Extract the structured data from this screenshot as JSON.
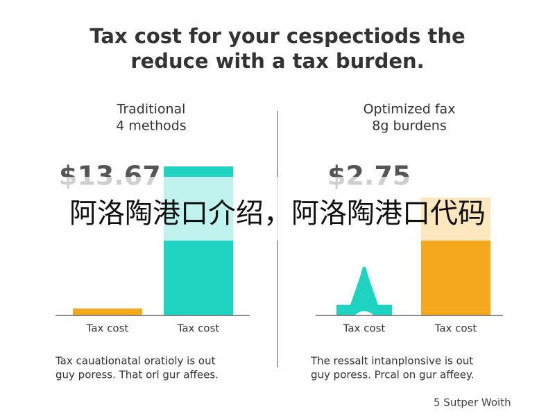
{
  "title": [
    "Tax cost for your cespectiods the",
    "reduce with a tax burden."
  ],
  "overlay_text": "阿洛陶港口介绍，阿洛陶港口代码",
  "footer": "5 Sutper Woith",
  "chart_data": [
    {
      "type": "bar",
      "subtitle": [
        "Traditional",
        "4 methods"
      ],
      "big_label": "$13.67",
      "categories": [
        "Tax cost",
        "Tax cost"
      ],
      "values": [
        2,
        43
      ],
      "colors": [
        "#f5a81c",
        "#1fd3c1"
      ],
      "shapes": [
        "bar",
        "bar"
      ],
      "footnote": [
        "Tax cauationatal oratioly is out",
        "guy poress. That orl gur affees."
      ]
    },
    {
      "type": "bar",
      "subtitle": [
        "Optimized fax",
        "8g burdens"
      ],
      "big_label": "$2.75",
      "categories": [
        "Tax cost",
        "Tax cost"
      ],
      "values": [
        14,
        34
      ],
      "colors": [
        "#1fd3c1",
        "#f5a81c"
      ],
      "shapes": [
        "tower",
        "bar"
      ],
      "footnote": [
        "The ressalt intanplonsive is out",
        "guy poress. Prcal on gur affeey."
      ]
    }
  ]
}
